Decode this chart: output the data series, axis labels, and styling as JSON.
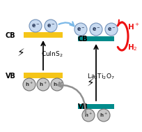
{
  "bg_color": "#ffffff",
  "cuins2_cb_color": "#f5c518",
  "cuins2_vb_color": "#f5c518",
  "la2ti2o7_cb_color": "#008b8b",
  "la2ti2o7_vb_color": "#008b8b",
  "electron_color": "#c8daf0",
  "electron_edge": "#7090b8",
  "hole_color": "#c8c8c8",
  "hole_edge": "#707070",
  "blue_arrow": "#7ab8e8",
  "gray_arrow": "#909090",
  "red_arrow": "#ee1111",
  "black": "#111111",
  "cuins2_label": "CuInS$_2$",
  "la2ti2o7_label": "La$_2$Ti$_2$O$_7$",
  "h_plus": "H$^+$",
  "h2": "H$_2$"
}
